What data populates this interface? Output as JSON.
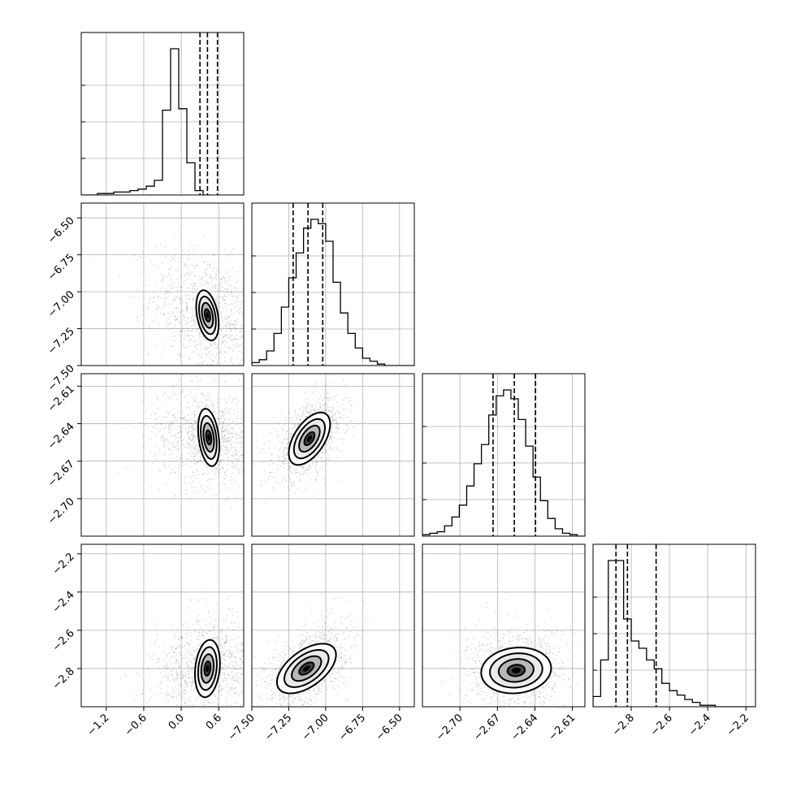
{
  "chart_data": {
    "type": "corner",
    "title": "",
    "parameters": [
      {
        "label": "",
        "range": [
          -1.6,
          1.0
        ],
        "ticks": [
          -1.2,
          -0.6,
          0.0,
          0.6
        ],
        "tick_labels": [
          "−1.2",
          "−0.6",
          "0.0",
          "0.6"
        ]
      },
      {
        "label": "",
        "range": [
          -7.5,
          -6.4
        ],
        "ticks": [
          -7.5,
          -7.25,
          -7.0,
          -6.75,
          -6.5
        ],
        "tick_labels": [
          "−7.50",
          "−7.25",
          "−7.00",
          "−6.75",
          "−6.50"
        ]
      },
      {
        "label": "",
        "range": [
          -2.73,
          -2.6
        ],
        "ticks": [
          -2.7,
          -2.67,
          -2.64,
          -2.61
        ],
        "tick_labels": [
          "−2.70",
          "−2.67",
          "−2.64",
          "−2.61"
        ]
      },
      {
        "label": "",
        "range": [
          -3.0,
          -2.15
        ],
        "ticks": [
          -2.8,
          -2.6,
          -2.4,
          -2.2
        ],
        "tick_labels": [
          "−2.8",
          "−2.6",
          "−2.4",
          "−2.2"
        ]
      }
    ],
    "histograms": [
      {
        "param": 0,
        "bin_start": -1.6,
        "bin_width": 0.13,
        "counts": [
          0,
          0,
          1,
          1,
          2,
          2,
          3,
          4,
          6,
          10,
          58,
          100,
          59,
          22,
          3,
          0
        ],
        "quantiles": [
          0.3,
          0.42,
          0.58
        ]
      },
      {
        "param": 1,
        "bin_start": -7.5,
        "bin_width": 0.05,
        "counts": [
          2,
          4,
          10,
          22,
          40,
          60,
          77,
          94,
          100,
          97,
          85,
          57,
          36,
          22,
          12,
          5,
          3,
          1,
          0,
          0,
          0,
          0
        ],
        "quantiles": [
          -7.22,
          -7.12,
          -7.02
        ]
      },
      {
        "param": 2,
        "bin_start": -2.73,
        "bin_width": 0.0059,
        "counts": [
          1,
          2,
          3,
          7,
          13,
          21,
          34,
          49,
          62,
          82,
          95,
          99,
          93,
          79,
          61,
          40,
          24,
          12,
          5,
          2,
          1,
          0
        ],
        "quantiles": [
          -2.6735,
          -2.6565,
          -2.6395
        ]
      },
      {
        "param": 3,
        "bin_start": -3.0,
        "bin_width": 0.04,
        "counts": [
          7,
          32,
          100,
          100,
          60,
          45,
          40,
          32,
          26,
          16,
          11,
          8,
          5,
          3,
          1,
          1,
          0,
          0,
          0,
          0,
          0
        ],
        "quantiles": [
          -2.88,
          -2.82,
          -2.67
        ]
      }
    ],
    "pair_densities": [
      {
        "x_param": 0,
        "y_param": 1,
        "center": [
          0.42,
          -7.16
        ],
        "sigma": [
          0.09,
          0.085
        ],
        "rho": -0.35,
        "scatter_sigma": [
          0.45,
          0.22
        ],
        "scatter_rho": -0.3
      },
      {
        "x_param": 0,
        "y_param": 2,
        "center": [
          0.44,
          -2.651
        ],
        "sigma": [
          0.085,
          0.0115
        ],
        "rho": -0.3,
        "scatter_sigma": [
          0.45,
          0.02
        ],
        "scatter_rho": -0.2
      },
      {
        "x_param": 1,
        "y_param": 2,
        "center": [
          -7.11,
          -2.652
        ],
        "sigma": [
          0.07,
          0.0105
        ],
        "rho": 0.55,
        "scatter_sigma": [
          0.12,
          0.016
        ],
        "scatter_rho": 0.5
      },
      {
        "x_param": 0,
        "y_param": 3,
        "center": [
          0.42,
          -2.8
        ],
        "sigma": [
          0.1,
          0.075
        ],
        "rho": 0.2,
        "scatter_sigma": [
          0.45,
          0.14
        ],
        "scatter_rho": 0.2
      },
      {
        "x_param": 1,
        "y_param": 3,
        "center": [
          -7.13,
          -2.8
        ],
        "sigma": [
          0.1,
          0.065
        ],
        "rho": 0.55,
        "scatter_sigma": [
          0.14,
          0.12
        ],
        "scatter_rho": 0.5
      },
      {
        "x_param": 2,
        "y_param": 3,
        "center": [
          -2.655,
          -2.81
        ],
        "sigma": [
          0.014,
          0.06
        ],
        "rho": 0.1,
        "scatter_sigma": [
          0.02,
          0.11
        ],
        "scatter_rho": 0.1
      }
    ],
    "contour_levels_sigma": [
      0.5,
      1.0,
      1.5,
      2.0
    ],
    "grid": true
  }
}
